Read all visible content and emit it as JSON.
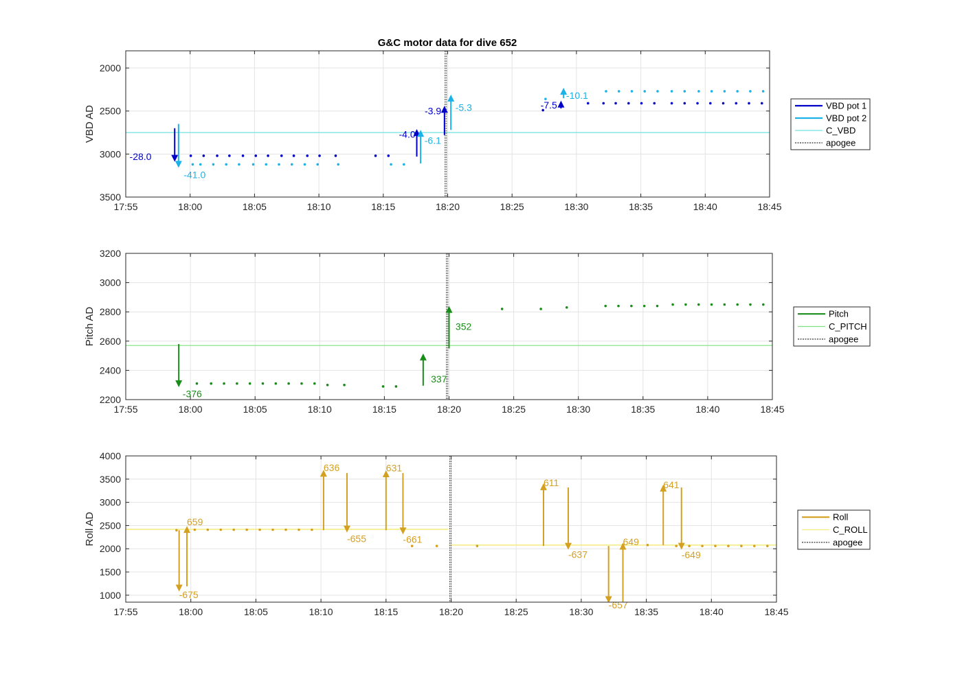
{
  "figure": {
    "title": "G&C motor data for dive 652"
  },
  "chart_data": [
    {
      "type": "scatter",
      "title": "G&C motor data for dive 652",
      "xlabel": "",
      "ylabel": "VBD AD",
      "xlim_min": [
        1075,
        1125
      ],
      "y_reversed": true,
      "ylim": [
        1800,
        3500
      ],
      "x_ticks": [
        "17:55",
        "18:00",
        "18:05",
        "18:10",
        "18:15",
        "18:20",
        "18:25",
        "18:30",
        "18:35",
        "18:40",
        "18:45"
      ],
      "x_tick_values": [
        1075,
        1080,
        1085,
        1090,
        1095,
        1100,
        1105,
        1110,
        1115,
        1120,
        1125
      ],
      "y_ticks": [
        "2000",
        "2500",
        "3000",
        "3500"
      ],
      "y_tick_values": [
        2000,
        2500,
        3000,
        3500
      ],
      "grid": true,
      "legend_position": "outside-right",
      "legend": [
        "VBD pot 1",
        "VBD pot 2",
        "C_VBD",
        "apogee"
      ],
      "apogee_min": 1099.8,
      "series": [
        {
          "name": "VBD pot 1",
          "color": "#0000c8",
          "x": [
            1080.05,
            1081.05,
            1082.1,
            1083.05,
            1084.1,
            1085.1,
            1086.05,
            1087.1,
            1088.05,
            1089.1,
            1090.05,
            1091.3,
            1094.4,
            1095.4,
            1107.4,
            1110.9,
            1112.1,
            1113.05,
            1114.05,
            1115.05,
            1116.05,
            1117.4,
            1118.4,
            1119.4,
            1120.4,
            1121.4,
            1122.4,
            1123.4,
            1124.4
          ],
          "y": [
            3020,
            3020,
            3020,
            3020,
            3020,
            3020,
            3020,
            3020,
            3020,
            3020,
            3020,
            3020,
            3020,
            3020,
            2490,
            2410,
            2410,
            2410,
            2410,
            2410,
            2410,
            2410,
            2410,
            2410,
            2410,
            2410,
            2410,
            2410,
            2410
          ]
        },
        {
          "name": "VBD pot 2",
          "color": "#1ab2e8",
          "x": [
            1080.2,
            1080.8,
            1081.8,
            1082.8,
            1083.8,
            1084.9,
            1085.9,
            1086.9,
            1087.9,
            1088.9,
            1089.9,
            1091.5,
            1095.6,
            1096.6,
            1107.6,
            1112.3,
            1113.3,
            1114.3,
            1115.3,
            1116.3,
            1117.4,
            1118.4,
            1119.5,
            1120.5,
            1121.5,
            1122.5,
            1123.5,
            1124.5
          ],
          "y": [
            3120,
            3120,
            3120,
            3120,
            3120,
            3120,
            3120,
            3120,
            3120,
            3120,
            3120,
            3120,
            3120,
            3120,
            2360,
            2270,
            2270,
            2270,
            2270,
            2270,
            2270,
            2270,
            2270,
            2270,
            2270,
            2270,
            2270,
            2270
          ]
        },
        {
          "name": "C_VBD",
          "color": "#6fe0e0",
          "type": "hline",
          "y": 2750
        }
      ],
      "arrows": [
        {
          "series": "VBD pot 1",
          "x": 1078.8,
          "from": 2700,
          "to": 3090,
          "label": "-28.0",
          "lx": 1077,
          "ly": 3030,
          "anchor": "end"
        },
        {
          "series": "VBD pot 2",
          "x": 1079.1,
          "from": 2650,
          "to": 3160,
          "label": "-41.0",
          "lx": 1079.5,
          "ly": 3240,
          "anchor": "start"
        },
        {
          "series": "VBD pot 1",
          "x": 1097.6,
          "from": 3030,
          "to": 2710,
          "label": "-4.0",
          "lx": 1097.5,
          "ly": 2770,
          "anchor": "end"
        },
        {
          "series": "VBD pot 2",
          "x": 1097.9,
          "from": 3110,
          "to": 2720,
          "label": "-6.1",
          "lx": 1098.2,
          "ly": 2840,
          "anchor": "start"
        },
        {
          "series": "VBD pot 1",
          "x": 1099.75,
          "from": 2780,
          "to": 2440,
          "label": "-3.9",
          "lx": 1099.5,
          "ly": 2500,
          "anchor": "end"
        },
        {
          "series": "VBD pot 2",
          "x": 1100.25,
          "from": 2720,
          "to": 2310,
          "label": "-5.3",
          "lx": 1100.6,
          "ly": 2460,
          "anchor": "start"
        },
        {
          "series": "VBD pot 1",
          "x": 1108.8,
          "from": 2470,
          "to": 2380,
          "label": "-7.5",
          "lx": 1108.5,
          "ly": 2430,
          "anchor": "end"
        },
        {
          "series": "VBD pot 2",
          "x": 1109.0,
          "from": 2350,
          "to": 2230,
          "label": "-10.1",
          "lx": 1109.2,
          "ly": 2320,
          "anchor": "start"
        }
      ]
    },
    {
      "type": "scatter",
      "xlabel": "",
      "ylabel": "Pitch AD",
      "xlim_min": [
        1075,
        1125
      ],
      "ylim": [
        2200,
        3200
      ],
      "x_ticks": [
        "17:55",
        "18:00",
        "18:05",
        "18:10",
        "18:15",
        "18:20",
        "18:25",
        "18:30",
        "18:35",
        "18:40",
        "18:45"
      ],
      "x_tick_values": [
        1075,
        1080,
        1085,
        1090,
        1095,
        1100,
        1105,
        1110,
        1115,
        1120,
        1125
      ],
      "y_ticks": [
        "2200",
        "2400",
        "2600",
        "2800",
        "3000",
        "3200"
      ],
      "y_tick_values": [
        2200,
        2400,
        2600,
        2800,
        3000,
        3200
      ],
      "grid": true,
      "legend_position": "outside-right",
      "legend": [
        "Pitch",
        "C_PITCH",
        "apogee"
      ],
      "apogee_min": 1099.8,
      "series": [
        {
          "name": "Pitch",
          "color": "#1a8c1a",
          "x": [
            1080.5,
            1081.6,
            1082.6,
            1083.6,
            1084.6,
            1085.6,
            1086.6,
            1087.6,
            1088.6,
            1089.6,
            1090.6,
            1091.9,
            1094.9,
            1095.9,
            1104.1,
            1107.1,
            1109.1,
            1112.1,
            1113.1,
            1114.1,
            1115.1,
            1116.1,
            1117.3,
            1118.3,
            1119.3,
            1120.3,
            1121.3,
            1122.3,
            1123.3,
            1124.3
          ],
          "y": [
            2310,
            2310,
            2310,
            2310,
            2310,
            2310,
            2310,
            2310,
            2310,
            2310,
            2300,
            2300,
            2290,
            2290,
            2820,
            2820,
            2830,
            2840,
            2840,
            2840,
            2840,
            2840,
            2850,
            2850,
            2850,
            2850,
            2850,
            2850,
            2850,
            2850
          ]
        },
        {
          "name": "C_PITCH",
          "color": "#7ee07e",
          "type": "hline",
          "y": 2570
        }
      ],
      "arrows": [
        {
          "series": "Pitch",
          "x": 1079.1,
          "from": 2580,
          "to": 2285,
          "label": "-376",
          "lx": 1079.4,
          "ly": 2240,
          "anchor": "start"
        },
        {
          "series": "Pitch",
          "x": 1098.0,
          "from": 2295,
          "to": 2515,
          "label": "337",
          "lx": 1098.6,
          "ly": 2340,
          "anchor": "start"
        },
        {
          "series": "Pitch",
          "x": 1100.0,
          "from": 2550,
          "to": 2840,
          "label": "352",
          "lx": 1100.5,
          "ly": 2700,
          "anchor": "start"
        }
      ]
    },
    {
      "type": "scatter",
      "xlabel": "",
      "ylabel": "Roll AD",
      "xlim_min": [
        1075,
        1125
      ],
      "ylim": [
        850,
        4000
      ],
      "x_ticks": [
        "17:55",
        "18:00",
        "18:05",
        "18:10",
        "18:15",
        "18:20",
        "18:25",
        "18:30",
        "18:35",
        "18:40",
        "18:45"
      ],
      "x_tick_values": [
        1075,
        1080,
        1085,
        1090,
        1095,
        1100,
        1105,
        1110,
        1115,
        1120,
        1125
      ],
      "y_ticks": [
        "1000",
        "1500",
        "2000",
        "2500",
        "3000",
        "3500",
        "4000"
      ],
      "y_tick_values": [
        1000,
        1500,
        2000,
        2500,
        3000,
        3500,
        4000
      ],
      "grid": true,
      "legend_position": "outside-right",
      "legend": [
        "Roll",
        "C_ROLL",
        "apogee"
      ],
      "apogee_min": 1099.9,
      "series": [
        {
          "name": "Roll",
          "color": "#d4a021",
          "x": [
            1078.9,
            1080.3,
            1081.3,
            1082.3,
            1083.3,
            1084.3,
            1085.3,
            1086.3,
            1087.3,
            1088.3,
            1089.3,
            1097.0,
            1098.9,
            1102.0,
            1113.2,
            1115.1,
            1117.3,
            1118.3,
            1119.3,
            1120.3,
            1121.3,
            1122.3,
            1123.3,
            1124.3
          ],
          "y": [
            2400,
            2410,
            2410,
            2410,
            2410,
            2410,
            2410,
            2410,
            2410,
            2410,
            2410,
            2060,
            2060,
            2060,
            2080,
            2080,
            2060,
            2060,
            2060,
            2060,
            2060,
            2060,
            2060,
            2060
          ]
        },
        {
          "name": "C_ROLL",
          "color": "#f5ec7d",
          "type": "hline_segments",
          "segments": [
            {
              "x0": 1075,
              "x1": 1099.8,
              "y": 2420
            },
            {
              "x0": 1099.8,
              "x1": 1125,
              "y": 2080
            }
          ]
        }
      ],
      "arrows": [
        {
          "series": "Roll",
          "x": 1079.1,
          "from": 2400,
          "to": 1080,
          "label": "-675",
          "lx": 1079.1,
          "ly": 1010,
          "anchor": "start"
        },
        {
          "series": "Roll",
          "x": 1079.7,
          "from": 1190,
          "to": 2490,
          "label": "659",
          "lx": 1079.7,
          "ly": 2580,
          "anchor": "start"
        },
        {
          "series": "Roll",
          "x": 1090.2,
          "from": 2400,
          "to": 3700,
          "label": "636",
          "lx": 1090.2,
          "ly": 3750,
          "anchor": "start"
        },
        {
          "series": "Roll",
          "x": 1092.0,
          "from": 3630,
          "to": 2350,
          "label": "-655",
          "lx": 1092.0,
          "ly": 2220,
          "anchor": "start"
        },
        {
          "series": "Roll",
          "x": 1095.0,
          "from": 2400,
          "to": 3690,
          "label": "631",
          "lx": 1095.0,
          "ly": 3740,
          "anchor": "start"
        },
        {
          "series": "Roll",
          "x": 1096.3,
          "from": 3630,
          "to": 2310,
          "label": "-661",
          "lx": 1096.3,
          "ly": 2200,
          "anchor": "start"
        },
        {
          "series": "Roll",
          "x": 1107.1,
          "from": 2060,
          "to": 3410,
          "label": "611",
          "lx": 1107.1,
          "ly": 3420,
          "anchor": "start"
        },
        {
          "series": "Roll",
          "x": 1109.0,
          "from": 3320,
          "to": 1980,
          "label": "-637",
          "lx": 1109.0,
          "ly": 1880,
          "anchor": "start"
        },
        {
          "series": "Roll",
          "x": 1112.1,
          "from": 2060,
          "to": 830,
          "label": "-657",
          "lx": 1112.1,
          "ly": 790,
          "anchor": "start"
        },
        {
          "series": "Roll",
          "x": 1113.2,
          "from": 860,
          "to": 2130,
          "label": "649",
          "lx": 1113.2,
          "ly": 2150,
          "anchor": "start"
        },
        {
          "series": "Roll",
          "x": 1116.3,
          "from": 2080,
          "to": 3380,
          "label": "641",
          "lx": 1116.3,
          "ly": 3380,
          "anchor": "start"
        },
        {
          "series": "Roll",
          "x": 1117.7,
          "from": 3320,
          "to": 1980,
          "label": "-649",
          "lx": 1117.7,
          "ly": 1870,
          "anchor": "start"
        }
      ]
    }
  ]
}
